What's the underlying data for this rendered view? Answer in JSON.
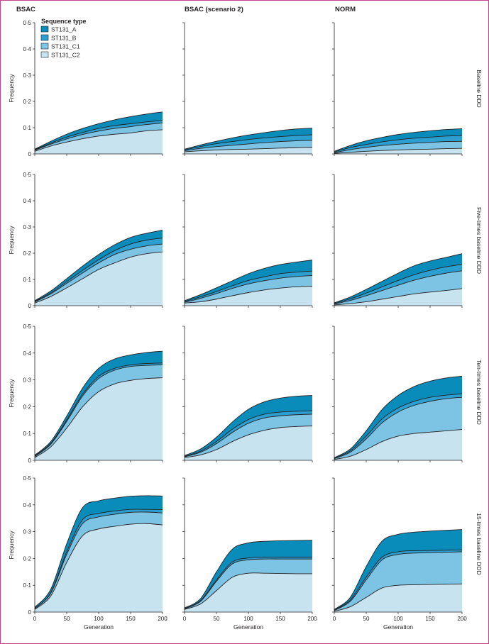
{
  "colors": {
    "ST131_A": "#0a8cbb",
    "ST131_B": "#2a9fd0",
    "ST131_C1": "#7cc3e4",
    "ST131_C2": "#c7e3f0",
    "outline": "#231f20"
  },
  "columns": [
    "BSAC",
    "BSAC (scenario 2)",
    "NORM"
  ],
  "rows": [
    "Baseline DDD",
    "Five-times baseline DDD",
    "Ten-times baseline DDD",
    "15-times baseline DDD"
  ],
  "legend": {
    "title": "Sequence type",
    "items": [
      "ST131_A",
      "ST131_B",
      "ST131_C1",
      "ST131_C2"
    ]
  },
  "axes": {
    "ylabel": "Frequency",
    "xlabel": "Generation",
    "yticks": [
      "0",
      "0·1",
      "0·2",
      "0·3",
      "0·4",
      "0·5"
    ],
    "xticks": [
      "0",
      "50",
      "100",
      "150",
      "200"
    ]
  },
  "chart_data": {
    "type": "area",
    "stacked": true,
    "x": [
      0,
      25,
      50,
      75,
      100,
      125,
      150,
      175,
      200
    ],
    "xlim": [
      0,
      200
    ],
    "ylim": [
      0,
      0.5
    ],
    "series_names": [
      "ST131_C2",
      "ST131_C1",
      "ST131_B",
      "ST131_A"
    ],
    "panels": [
      {
        "row": "Baseline DDD",
        "column": "BSAC",
        "cumulative": [
          [
            0.01,
            0.03,
            0.045,
            0.058,
            0.068,
            0.075,
            0.08,
            0.088,
            0.092
          ],
          [
            0.014,
            0.037,
            0.057,
            0.074,
            0.087,
            0.097,
            0.104,
            0.112,
            0.118
          ],
          [
            0.016,
            0.041,
            0.064,
            0.082,
            0.097,
            0.108,
            0.115,
            0.122,
            0.128
          ],
          [
            0.018,
            0.048,
            0.075,
            0.097,
            0.115,
            0.13,
            0.142,
            0.152,
            0.16
          ]
        ]
      },
      {
        "row": "Baseline DDD",
        "column": "BSAC (scenario 2)",
        "cumulative": [
          [
            0.008,
            0.012,
            0.015,
            0.017,
            0.018,
            0.02,
            0.022,
            0.024,
            0.025
          ],
          [
            0.012,
            0.021,
            0.028,
            0.033,
            0.038,
            0.043,
            0.047,
            0.05,
            0.052
          ],
          [
            0.015,
            0.028,
            0.039,
            0.047,
            0.055,
            0.061,
            0.066,
            0.07,
            0.073
          ],
          [
            0.018,
            0.034,
            0.048,
            0.061,
            0.072,
            0.081,
            0.089,
            0.095,
            0.098
          ]
        ]
      },
      {
        "row": "Baseline DDD",
        "column": "NORM",
        "cumulative": [
          [
            0.002,
            0.006,
            0.01,
            0.013,
            0.015,
            0.017,
            0.018,
            0.02,
            0.021
          ],
          [
            0.005,
            0.016,
            0.025,
            0.032,
            0.037,
            0.041,
            0.044,
            0.047,
            0.048
          ],
          [
            0.008,
            0.024,
            0.036,
            0.046,
            0.054,
            0.06,
            0.064,
            0.068,
            0.07
          ],
          [
            0.01,
            0.032,
            0.05,
            0.063,
            0.074,
            0.082,
            0.088,
            0.093,
            0.096
          ]
        ]
      },
      {
        "row": "Five-times baseline DDD",
        "column": "BSAC",
        "cumulative": [
          [
            0.01,
            0.035,
            0.068,
            0.103,
            0.138,
            0.163,
            0.185,
            0.198,
            0.205
          ],
          [
            0.014,
            0.045,
            0.085,
            0.125,
            0.163,
            0.195,
            0.215,
            0.228,
            0.235
          ],
          [
            0.016,
            0.049,
            0.092,
            0.135,
            0.175,
            0.21,
            0.235,
            0.25,
            0.258
          ],
          [
            0.019,
            0.056,
            0.103,
            0.151,
            0.195,
            0.232,
            0.26,
            0.276,
            0.288
          ]
        ]
      },
      {
        "row": "Five-times baseline DDD",
        "column": "BSAC (scenario 2)",
        "cumulative": [
          [
            0.01,
            0.015,
            0.025,
            0.038,
            0.05,
            0.06,
            0.067,
            0.072,
            0.074
          ],
          [
            0.013,
            0.028,
            0.046,
            0.066,
            0.083,
            0.095,
            0.105,
            0.111,
            0.115
          ],
          [
            0.016,
            0.034,
            0.054,
            0.076,
            0.096,
            0.11,
            0.122,
            0.128,
            0.132
          ],
          [
            0.019,
            0.042,
            0.068,
            0.095,
            0.122,
            0.142,
            0.157,
            0.166,
            0.174
          ]
        ]
      },
      {
        "row": "Five-times baseline DDD",
        "column": "NORM",
        "cumulative": [
          [
            0.003,
            0.008,
            0.015,
            0.025,
            0.035,
            0.045,
            0.052,
            0.058,
            0.065
          ],
          [
            0.006,
            0.02,
            0.038,
            0.058,
            0.078,
            0.097,
            0.112,
            0.124,
            0.133
          ],
          [
            0.008,
            0.026,
            0.048,
            0.072,
            0.096,
            0.118,
            0.135,
            0.148,
            0.158
          ],
          [
            0.011,
            0.033,
            0.062,
            0.093,
            0.124,
            0.152,
            0.17,
            0.184,
            0.198
          ]
        ]
      },
      {
        "row": "Ten-times baseline DDD",
        "column": "BSAC",
        "cumulative": [
          [
            0.01,
            0.05,
            0.12,
            0.2,
            0.256,
            0.285,
            0.298,
            0.305,
            0.308
          ],
          [
            0.014,
            0.06,
            0.145,
            0.24,
            0.305,
            0.336,
            0.35,
            0.354,
            0.356
          ],
          [
            0.016,
            0.063,
            0.15,
            0.247,
            0.313,
            0.343,
            0.356,
            0.361,
            0.363
          ],
          [
            0.019,
            0.07,
            0.165,
            0.27,
            0.343,
            0.378,
            0.393,
            0.402,
            0.407
          ]
        ]
      },
      {
        "row": "Ten-times baseline DDD",
        "column": "BSAC (scenario 2)",
        "cumulative": [
          [
            0.01,
            0.02,
            0.04,
            0.07,
            0.095,
            0.112,
            0.122,
            0.126,
            0.128
          ],
          [
            0.013,
            0.03,
            0.062,
            0.104,
            0.138,
            0.158,
            0.166,
            0.17,
            0.172
          ],
          [
            0.015,
            0.034,
            0.07,
            0.116,
            0.152,
            0.172,
            0.18,
            0.183,
            0.185
          ],
          [
            0.018,
            0.042,
            0.086,
            0.143,
            0.19,
            0.218,
            0.232,
            0.239,
            0.242
          ]
        ]
      },
      {
        "row": "Ten-times baseline DDD",
        "column": "NORM",
        "cumulative": [
          [
            0.003,
            0.015,
            0.04,
            0.07,
            0.09,
            0.1,
            0.105,
            0.11,
            0.115
          ],
          [
            0.006,
            0.03,
            0.08,
            0.14,
            0.18,
            0.205,
            0.22,
            0.23,
            0.235
          ],
          [
            0.008,
            0.035,
            0.09,
            0.155,
            0.195,
            0.22,
            0.235,
            0.243,
            0.248
          ],
          [
            0.01,
            0.042,
            0.11,
            0.19,
            0.242,
            0.275,
            0.295,
            0.307,
            0.314
          ]
        ]
      },
      {
        "row": "15-times baseline DDD",
        "column": "BSAC",
        "cumulative": [
          [
            0.01,
            0.06,
            0.185,
            0.285,
            0.31,
            0.32,
            0.328,
            0.33,
            0.325
          ],
          [
            0.013,
            0.07,
            0.215,
            0.33,
            0.355,
            0.365,
            0.372,
            0.373,
            0.37
          ],
          [
            0.014,
            0.072,
            0.225,
            0.345,
            0.368,
            0.377,
            0.383,
            0.383,
            0.382
          ],
          [
            0.018,
            0.085,
            0.255,
            0.39,
            0.415,
            0.425,
            0.432,
            0.434,
            0.433
          ]
        ]
      },
      {
        "row": "15-times baseline DDD",
        "column": "BSAC (scenario 2)",
        "cumulative": [
          [
            0.01,
            0.03,
            0.08,
            0.13,
            0.145,
            0.145,
            0.144,
            0.143,
            0.143
          ],
          [
            0.012,
            0.04,
            0.115,
            0.18,
            0.195,
            0.198,
            0.198,
            0.198,
            0.198
          ],
          [
            0.013,
            0.042,
            0.12,
            0.187,
            0.202,
            0.205,
            0.205,
            0.205,
            0.205
          ],
          [
            0.016,
            0.05,
            0.15,
            0.235,
            0.258,
            0.264,
            0.266,
            0.267,
            0.268
          ]
        ]
      },
      {
        "row": "15-times baseline DDD",
        "column": "NORM",
        "cumulative": [
          [
            0.003,
            0.02,
            0.055,
            0.09,
            0.1,
            0.102,
            0.103,
            0.104,
            0.105
          ],
          [
            0.006,
            0.04,
            0.12,
            0.195,
            0.215,
            0.22,
            0.222,
            0.223,
            0.225
          ],
          [
            0.008,
            0.045,
            0.13,
            0.205,
            0.225,
            0.229,
            0.23,
            0.231,
            0.232
          ],
          [
            0.01,
            0.055,
            0.17,
            0.265,
            0.29,
            0.298,
            0.302,
            0.305,
            0.308
          ]
        ]
      }
    ]
  }
}
